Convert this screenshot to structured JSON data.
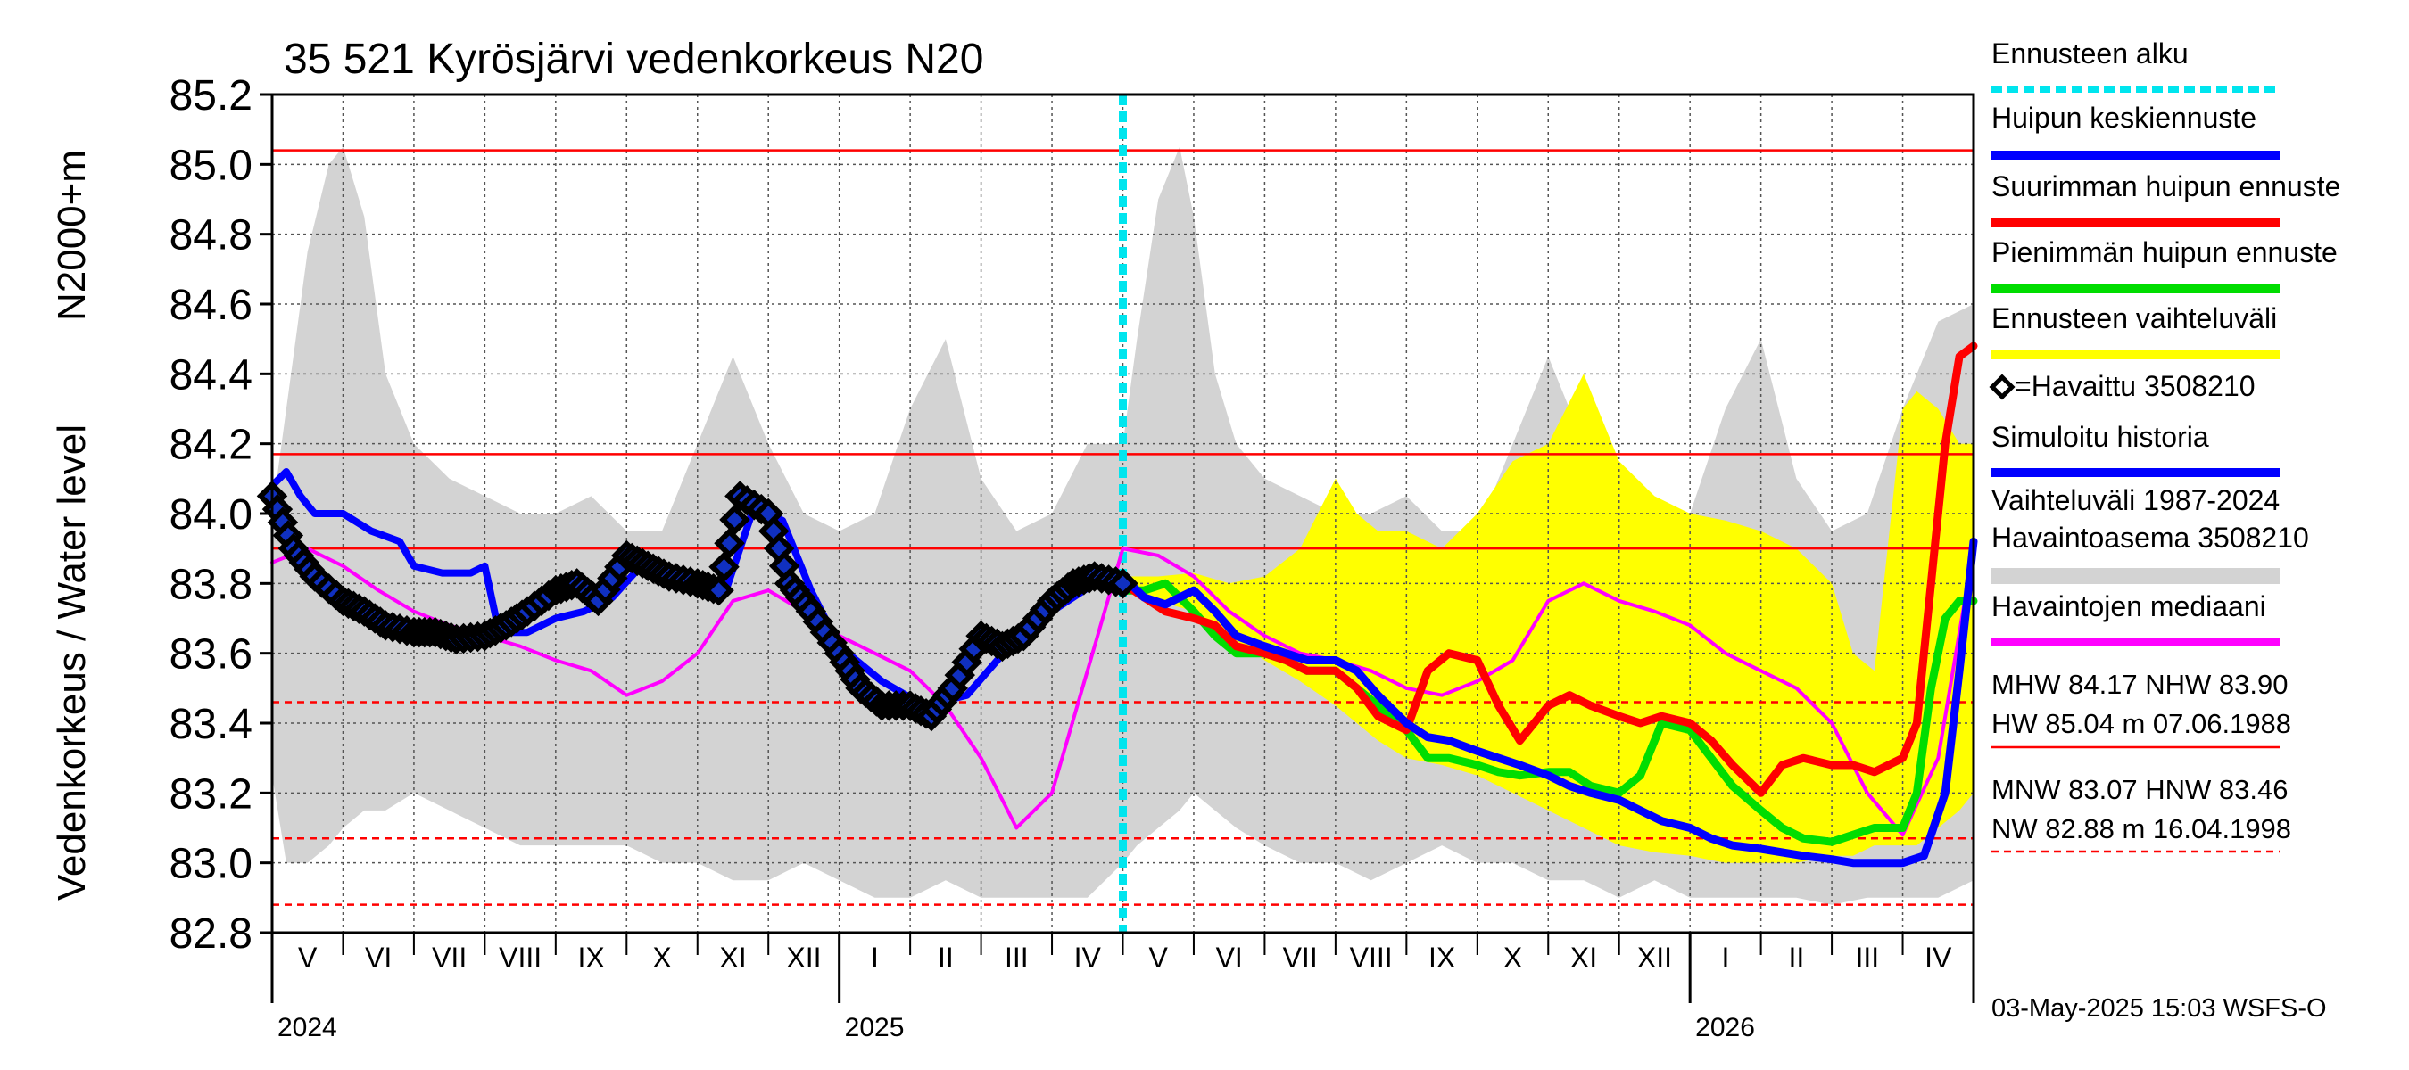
{
  "chart_data": {
    "type": "line",
    "title": "35 521 Kyrösjärvi vedenkorkeus N20",
    "ylabel_left": "Vedenkorkeus / Water level",
    "ylabel_right": "N2000+m",
    "ylim": [
      82.8,
      85.2
    ],
    "yticks": [
      "85.2",
      "85.0",
      "84.8",
      "84.6",
      "84.4",
      "84.2",
      "84.0",
      "83.8",
      "83.6",
      "83.4",
      "83.2",
      "83.0",
      "82.8"
    ],
    "month_labels": [
      "V",
      "VI",
      "VII",
      "VIII",
      "IX",
      "X",
      "XI",
      "XII",
      "I",
      "II",
      "III",
      "IV",
      "V",
      "VI",
      "VII",
      "VIII",
      "IX",
      "X",
      "XI",
      "XII",
      "I",
      "II",
      "III",
      "IV"
    ],
    "year_labels": [
      "2024",
      "2025",
      "2026"
    ],
    "forecast_start_month": 12,
    "reference_lines": [
      {
        "name": "HW",
        "value": 85.04,
        "style": "solid"
      },
      {
        "name": "MHW",
        "value": 84.17,
        "style": "solid"
      },
      {
        "name": "NHW",
        "value": 83.9,
        "style": "solid"
      },
      {
        "name": "HNW",
        "value": 83.46,
        "style": "dashed"
      },
      {
        "name": "MNW",
        "value": 83.07,
        "style": "dashed"
      },
      {
        "name": "NW",
        "value": 82.88,
        "style": "dashed"
      }
    ],
    "series": [
      {
        "name": "Vaihteluväli 1987-2024 Havaintoasema 3508210",
        "kind": "band",
        "color": "#d3d3d3",
        "x": [
          0,
          0.2,
          0.5,
          0.8,
          1.0,
          1.3,
          1.6,
          2.0,
          2.5,
          3.0,
          3.5,
          4.0,
          4.5,
          5.0,
          5.5,
          6.0,
          6.5,
          7.0,
          7.5,
          8.0,
          8.5,
          9.0,
          9.5,
          10.0,
          10.5,
          11.0,
          11.5,
          12.0,
          12.2,
          12.5,
          12.8,
          13.0,
          13.3,
          13.6,
          14.0,
          14.5,
          15.0,
          15.5,
          16.0,
          16.5,
          17.0,
          17.5,
          18.0,
          18.5,
          19.0,
          19.5,
          20.0,
          20.5,
          21.0,
          21.5,
          22.0,
          22.5,
          23.0,
          23.5,
          24.0
        ],
        "high": [
          84.0,
          84.3,
          84.75,
          85.0,
          85.05,
          84.85,
          84.4,
          84.2,
          84.1,
          84.05,
          84.0,
          84.0,
          84.05,
          83.95,
          83.95,
          84.2,
          84.45,
          84.2,
          84.0,
          83.95,
          84.0,
          84.3,
          84.5,
          84.1,
          83.95,
          84.0,
          84.2,
          84.2,
          84.5,
          84.9,
          85.05,
          84.85,
          84.4,
          84.2,
          84.1,
          84.05,
          84.0,
          84.0,
          84.05,
          83.95,
          83.95,
          84.2,
          84.45,
          84.2,
          84.0,
          83.95,
          84.0,
          84.3,
          84.5,
          84.1,
          83.95,
          84.0,
          84.3,
          84.55,
          84.6
        ],
        "low": [
          83.25,
          83.0,
          83.0,
          83.05,
          83.1,
          83.15,
          83.15,
          83.2,
          83.15,
          83.1,
          83.05,
          83.05,
          83.05,
          83.05,
          83.0,
          83.0,
          82.95,
          82.95,
          83.0,
          82.95,
          82.9,
          82.9,
          82.95,
          82.9,
          82.9,
          82.9,
          82.9,
          83.0,
          83.05,
          83.1,
          83.15,
          83.2,
          83.15,
          83.1,
          83.05,
          83.0,
          83.0,
          82.95,
          83.0,
          83.05,
          83.0,
          83.0,
          82.95,
          82.95,
          82.9,
          82.95,
          82.9,
          82.9,
          82.9,
          82.9,
          82.88,
          82.9,
          82.9,
          82.9,
          82.95
        ]
      },
      {
        "name": "Ennusteen vaihteluväli",
        "kind": "band",
        "color": "#ffff00",
        "x": [
          12.0,
          12.5,
          13.0,
          13.5,
          14.0,
          14.5,
          15.0,
          15.3,
          15.6,
          16.0,
          16.5,
          17.0,
          17.5,
          18.0,
          18.5,
          19.0,
          19.5,
          20.0,
          20.5,
          21.0,
          21.5,
          22.0,
          22.3,
          22.6,
          23.0,
          23.2,
          23.5,
          23.8,
          24.0
        ],
        "high": [
          83.82,
          83.82,
          83.83,
          83.8,
          83.82,
          83.9,
          84.1,
          84.0,
          83.95,
          83.95,
          83.9,
          84.0,
          84.15,
          84.2,
          84.4,
          84.15,
          84.05,
          84.0,
          83.98,
          83.95,
          83.9,
          83.8,
          83.6,
          83.55,
          84.3,
          84.35,
          84.3,
          84.2,
          84.2
        ],
        "low": [
          83.78,
          83.75,
          83.72,
          83.65,
          83.58,
          83.52,
          83.45,
          83.4,
          83.35,
          83.3,
          83.28,
          83.25,
          83.2,
          83.15,
          83.1,
          83.05,
          83.03,
          83.02,
          83.0,
          83.0,
          83.0,
          83.02,
          83.02,
          83.05,
          83.05,
          83.05,
          83.1,
          83.15,
          83.2
        ]
      },
      {
        "name": "Havaittu 3508210",
        "kind": "diamonds",
        "color": "#000000",
        "x": [
          0,
          0.3,
          0.6,
          1.0,
          1.3,
          1.6,
          2.0,
          2.3,
          2.6,
          3.0,
          3.3,
          3.6,
          4.0,
          4.3,
          4.6,
          5.0,
          5.3,
          5.6,
          6.0,
          6.3,
          6.6,
          7.0,
          7.3,
          7.6,
          8.0,
          8.3,
          8.6,
          9.0,
          9.3,
          9.6,
          10.0,
          10.3,
          10.6,
          11.0,
          11.3,
          11.6,
          12.0
        ],
        "y": [
          84.05,
          83.9,
          83.82,
          83.75,
          83.72,
          83.68,
          83.66,
          83.66,
          83.64,
          83.65,
          83.68,
          83.72,
          83.78,
          83.8,
          83.75,
          83.88,
          83.85,
          83.82,
          83.8,
          83.78,
          84.05,
          84.0,
          83.8,
          83.72,
          83.6,
          83.5,
          83.45,
          83.45,
          83.42,
          83.5,
          83.65,
          83.62,
          83.65,
          83.75,
          83.8,
          83.82,
          83.8
        ]
      },
      {
        "name": "Simuloitu historia",
        "kind": "line",
        "color": "#0000ff",
        "x": [
          0,
          0.2,
          0.4,
          0.6,
          1.0,
          1.4,
          1.8,
          2.0,
          2.4,
          2.8,
          3.0,
          3.2,
          3.6,
          4.0,
          4.4,
          4.8,
          5.2,
          5.6,
          6.0,
          6.4,
          6.8,
          7.2,
          7.6,
          8.0,
          8.6,
          9.2,
          9.8,
          10.4,
          11.0,
          11.6,
          12.0
        ],
        "y": [
          84.08,
          84.12,
          84.05,
          84.0,
          84.0,
          83.95,
          83.92,
          83.85,
          83.83,
          83.83,
          83.85,
          83.66,
          83.66,
          83.7,
          83.72,
          83.76,
          83.85,
          83.82,
          83.8,
          83.78,
          84.02,
          83.98,
          83.78,
          83.62,
          83.52,
          83.45,
          83.48,
          83.62,
          83.72,
          83.8,
          83.82
        ]
      },
      {
        "name": "Havaintojen mediaani",
        "kind": "line",
        "color": "#ff00ff",
        "x": [
          0,
          0.5,
          1.0,
          1.5,
          2.0,
          2.5,
          3.0,
          3.5,
          4.0,
          4.5,
          5.0,
          5.5,
          6.0,
          6.5,
          7.0,
          7.5,
          8.0,
          8.5,
          9.0,
          9.5,
          10.0,
          10.5,
          11.0,
          11.5,
          12.0,
          12.5,
          13.0,
          13.5,
          14.0,
          14.5,
          15.0,
          15.5,
          16.0,
          16.5,
          17.0,
          17.5,
          18.0,
          18.5,
          19.0,
          19.5,
          20.0,
          20.5,
          21.0,
          21.5,
          22.0,
          22.5,
          23.0,
          23.5,
          24.0
        ],
        "y": [
          83.86,
          83.9,
          83.85,
          83.78,
          83.72,
          83.68,
          83.65,
          83.62,
          83.58,
          83.55,
          83.48,
          83.52,
          83.6,
          83.75,
          83.78,
          83.72,
          83.65,
          83.6,
          83.55,
          83.45,
          83.3,
          83.1,
          83.2,
          83.55,
          83.9,
          83.88,
          83.82,
          83.72,
          83.65,
          83.6,
          83.58,
          83.55,
          83.5,
          83.48,
          83.52,
          83.58,
          83.75,
          83.8,
          83.75,
          83.72,
          83.68,
          83.6,
          83.55,
          83.5,
          83.4,
          83.2,
          83.08,
          83.3,
          83.9
        ]
      },
      {
        "name": "Huipun keskiennuste",
        "kind": "line",
        "color": "#0000ff",
        "x": [
          12.0,
          12.3,
          12.6,
          13.0,
          13.3,
          13.6,
          14.0,
          14.3,
          14.6,
          15.0,
          15.3,
          15.6,
          16.0,
          16.3,
          16.6,
          17.0,
          17.3,
          17.6,
          18.0,
          18.3,
          18.6,
          19.0,
          19.3,
          19.6,
          20.0,
          20.3,
          20.6,
          21.0,
          21.3,
          21.6,
          22.0,
          22.3,
          22.6,
          23.0,
          23.3,
          23.6,
          23.8,
          24.0
        ],
        "y": [
          83.82,
          83.76,
          83.74,
          83.78,
          83.72,
          83.65,
          83.62,
          83.6,
          83.58,
          83.58,
          83.55,
          83.48,
          83.4,
          83.36,
          83.35,
          83.32,
          83.3,
          83.28,
          83.25,
          83.22,
          83.2,
          83.18,
          83.15,
          83.12,
          83.1,
          83.07,
          83.05,
          83.04,
          83.03,
          83.02,
          83.01,
          83.0,
          83.0,
          83.0,
          83.02,
          83.2,
          83.55,
          83.92
        ]
      },
      {
        "name": "Suurimman huipun ennuste",
        "kind": "line",
        "color": "#ff0000",
        "x": [
          12.0,
          12.3,
          12.6,
          13.0,
          13.3,
          13.6,
          14.0,
          14.3,
          14.6,
          15.0,
          15.3,
          15.6,
          16.0,
          16.3,
          16.6,
          17.0,
          17.3,
          17.6,
          18.0,
          18.3,
          18.6,
          19.0,
          19.3,
          19.6,
          20.0,
          20.3,
          20.6,
          21.0,
          21.3,
          21.6,
          22.0,
          22.3,
          22.6,
          23.0,
          23.2,
          23.4,
          23.6,
          23.8,
          24.0
        ],
        "y": [
          83.8,
          83.76,
          83.72,
          83.7,
          83.68,
          83.62,
          83.6,
          83.58,
          83.55,
          83.55,
          83.5,
          83.42,
          83.38,
          83.55,
          83.6,
          83.58,
          83.45,
          83.35,
          83.45,
          83.48,
          83.45,
          83.42,
          83.4,
          83.42,
          83.4,
          83.35,
          83.28,
          83.2,
          83.28,
          83.3,
          83.28,
          83.28,
          83.26,
          83.3,
          83.4,
          83.8,
          84.2,
          84.45,
          84.48
        ]
      },
      {
        "name": "Pienimmän huipun ennuste",
        "kind": "line",
        "color": "#00dd00",
        "x": [
          12.0,
          12.3,
          12.6,
          13.0,
          13.3,
          13.6,
          14.0,
          14.3,
          14.6,
          15.0,
          15.3,
          15.6,
          16.0,
          16.3,
          16.6,
          17.0,
          17.3,
          17.6,
          18.0,
          18.3,
          18.6,
          19.0,
          19.3,
          19.6,
          20.0,
          20.3,
          20.6,
          21.0,
          21.3,
          21.6,
          22.0,
          22.3,
          22.6,
          23.0,
          23.2,
          23.4,
          23.6,
          23.8,
          24.0
        ],
        "y": [
          83.78,
          83.78,
          83.8,
          83.72,
          83.65,
          83.6,
          83.6,
          83.58,
          83.55,
          83.55,
          83.5,
          83.45,
          83.38,
          83.3,
          83.3,
          83.28,
          83.26,
          83.25,
          83.26,
          83.26,
          83.22,
          83.2,
          83.25,
          83.4,
          83.38,
          83.3,
          83.22,
          83.15,
          83.1,
          83.07,
          83.06,
          83.08,
          83.1,
          83.1,
          83.2,
          83.5,
          83.7,
          83.75,
          83.75
        ]
      }
    ],
    "legend": [
      {
        "label": "Ennusteen alku",
        "color": "#00e5ee",
        "style": "dashed"
      },
      {
        "label": "Huipun keskiennuste",
        "color": "#0000ff",
        "style": "solid"
      },
      {
        "label": "Suurimman huipun ennuste",
        "color": "#ff0000",
        "style": "solid"
      },
      {
        "label": "Pienimmän huipun ennuste",
        "color": "#00dd00",
        "style": "solid"
      },
      {
        "label": "Ennusteen vaihteluväli",
        "color": "#ffff00",
        "style": "solid"
      },
      {
        "label": "=Havaittu 3508210",
        "color": "#000000",
        "style": "diamond"
      },
      {
        "label": "Simuloitu historia",
        "color": "#0000ff",
        "style": "solid"
      },
      {
        "label": "Vaihteluväli 1987-2024",
        "label2": " Havaintoasema 3508210",
        "color": "#d3d3d3",
        "style": "band"
      },
      {
        "label": "Havaintojen mediaani",
        "color": "#ff00ff",
        "style": "solid"
      }
    ],
    "stats": [
      {
        "line1": "MHW  84.17 NHW  83.90",
        "line2": "HW  85.04 m 07.06.1988",
        "color": "#ff0000",
        "style": "solid"
      },
      {
        "line1": "MNW  83.07 HNW  83.46",
        "line2": "NW  82.88 m 16.04.1998",
        "color": "#ff0000",
        "style": "dashed"
      }
    ],
    "footer": "03-May-2025 15:03 WSFS-O"
  }
}
